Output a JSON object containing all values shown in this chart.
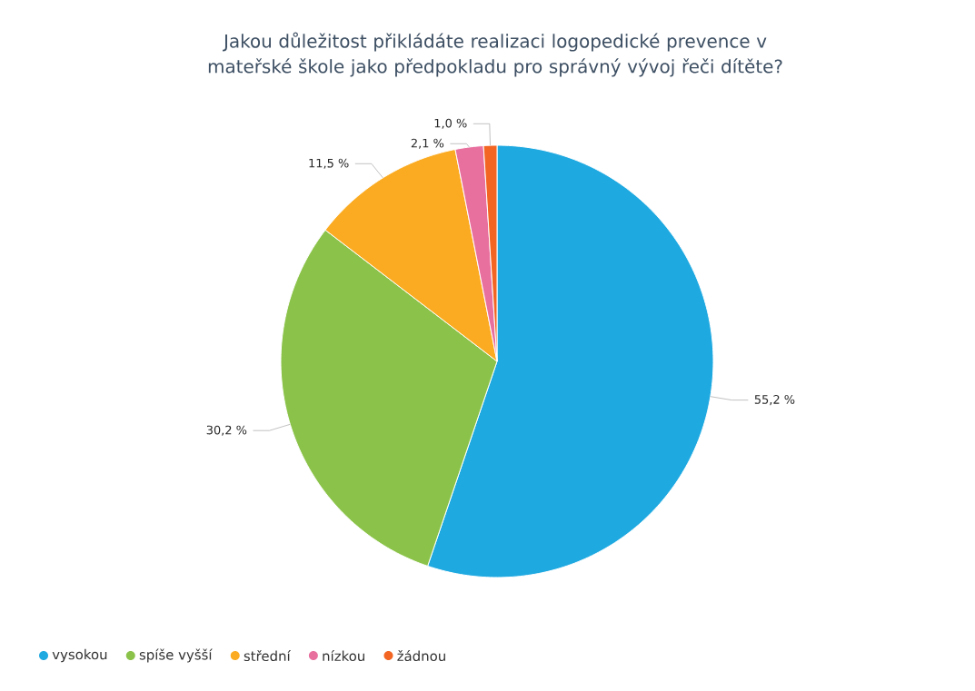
{
  "chart_data": {
    "type": "pie",
    "title": "Jakou důležitost přikládáte realizaci logopedické prevence v mateřské škole jako předpokladu pro správný vývoj řeči dítěte?",
    "categories": [
      "vysokou",
      "spíše vyšší",
      "střední",
      "nízkou",
      "žádnou"
    ],
    "values": [
      55.2,
      30.2,
      11.5,
      2.1,
      1.0
    ],
    "colors": [
      "#1fa9e1",
      "#8bc34a",
      "#fbab21",
      "#e8709f",
      "#f26522"
    ],
    "value_labels": [
      "55,2 %",
      "30,2 %",
      "11,5 %",
      "2,1 %",
      "1,0 %"
    ],
    "legend": "bottom"
  }
}
